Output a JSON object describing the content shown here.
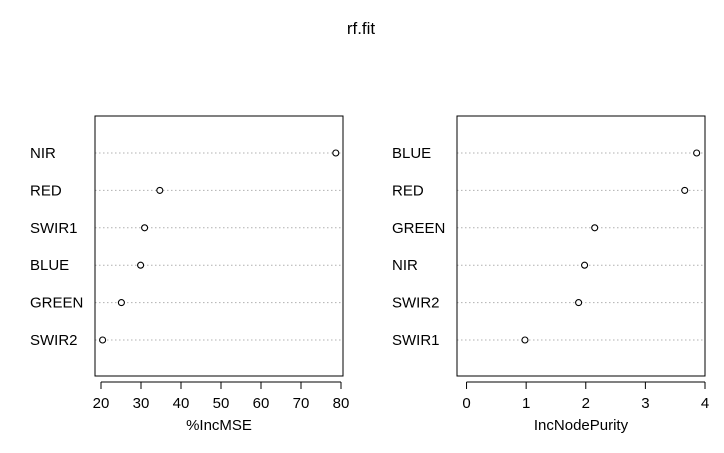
{
  "title": "rf.fit",
  "chart_data": [
    {
      "type": "dotchart",
      "xlabel": "%IncMSE",
      "xlim": [
        18.5,
        80.5
      ],
      "ticks": [
        20,
        30,
        40,
        50,
        60,
        70,
        80
      ],
      "categories": [
        "NIR",
        "RED",
        "SWIR1",
        "BLUE",
        "GREEN",
        "SWIR2"
      ],
      "values": [
        78.7,
        34.7,
        30.9,
        29.9,
        25.1,
        20.4
      ],
      "grid": true
    },
    {
      "type": "dotchart",
      "xlabel": "IncNodePurity",
      "xlim": [
        -0.16,
        4.0
      ],
      "ticks": [
        0,
        1,
        2,
        3,
        4
      ],
      "categories": [
        "BLUE",
        "RED",
        "GREEN",
        "NIR",
        "SWIR2",
        "SWIR1"
      ],
      "values": [
        3.86,
        3.66,
        2.15,
        1.98,
        1.88,
        0.98
      ],
      "grid": true
    }
  ]
}
